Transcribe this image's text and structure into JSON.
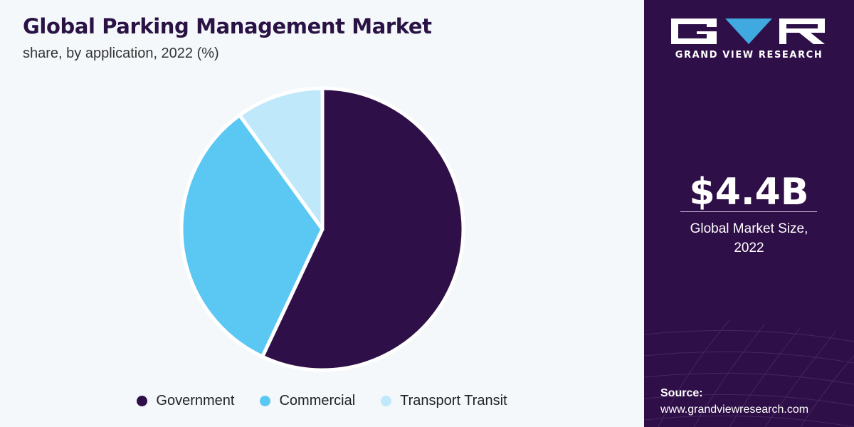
{
  "title": "Global Parking Management Market",
  "subtitle": "share, by application, 2022 (%)",
  "chart_data": {
    "type": "pie",
    "title": "Global Parking Management Market",
    "subtitle": "share, by application, 2022 (%)",
    "categories": [
      "Government",
      "Commercial",
      "Transport Transit"
    ],
    "values": [
      57,
      33,
      10
    ],
    "colors": [
      "#2f0f47",
      "#5bc8f3",
      "#bfe9fb"
    ],
    "start_angle_deg": 0,
    "direction": "clockwise",
    "legend_position": "bottom"
  },
  "legend": [
    {
      "label": "Government",
      "color": "#2f0f47"
    },
    {
      "label": "Commercial",
      "color": "#5bc8f3"
    },
    {
      "label": "Transport Transit",
      "color": "#bfe9fb"
    }
  ],
  "sidebar": {
    "brand": "GRAND VIEW RESEARCH",
    "market_size": "$4.4B",
    "market_label_line1": "Global Market Size,",
    "market_label_line2": "2022",
    "source_label": "Source:",
    "source_url": "www.grandviewresearch.com",
    "background": "#2f0f47",
    "logo_accent": "#3fa9e0"
  }
}
